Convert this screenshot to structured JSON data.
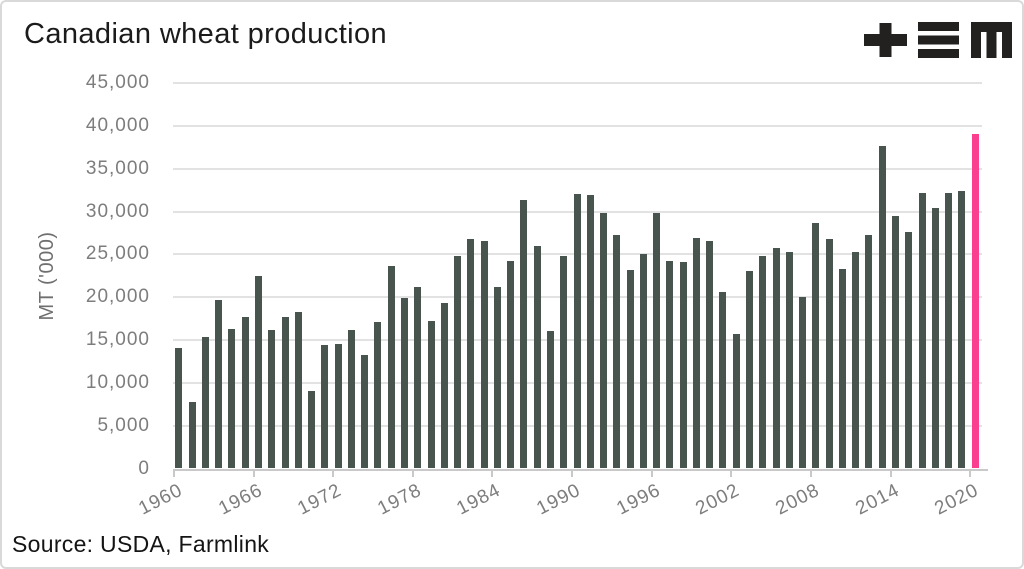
{
  "header": {
    "title": "Canadian wheat production",
    "logo_alt": "+≡M"
  },
  "source_line": "Source: USDA, Farmlink",
  "colors": {
    "bar": "#48554F",
    "highlight": "#FA3E90",
    "gridline": "#E2E2E2",
    "axis": "#C9C9C9",
    "tick_text": "#7D7D7D",
    "title_text": "#1B1B1B",
    "logo": "#232020",
    "frame_border": "#D9D9D9",
    "background": "#FFFFFF"
  },
  "chart_data": {
    "type": "bar",
    "title": "Canadian wheat production",
    "xlabel": "",
    "ylabel": "MT ('000)",
    "ylim": [
      0,
      45000
    ],
    "ytick_step": 5000,
    "ytick_labels": [
      "0",
      "5,000",
      "10,000",
      "15,000",
      "20,000",
      "25,000",
      "30,000",
      "35,000",
      "40,000",
      "45,000"
    ],
    "xtick_labels": [
      "1960",
      "1966",
      "1972",
      "1978",
      "1984",
      "1990",
      "1996",
      "2002",
      "2008",
      "2014",
      "2020"
    ],
    "xtick_interval": 6,
    "grid": true,
    "legend": false,
    "years": [
      1960,
      1961,
      1962,
      1963,
      1964,
      1965,
      1966,
      1967,
      1968,
      1969,
      1970,
      1971,
      1972,
      1973,
      1974,
      1975,
      1976,
      1977,
      1978,
      1979,
      1980,
      1981,
      1982,
      1983,
      1984,
      1985,
      1986,
      1987,
      1988,
      1989,
      1990,
      1991,
      1992,
      1993,
      1994,
      1995,
      1996,
      1997,
      1998,
      1999,
      2000,
      2001,
      2002,
      2003,
      2004,
      2005,
      2006,
      2007,
      2008,
      2009,
      2010,
      2011,
      2012,
      2013,
      2014,
      2015,
      2016,
      2017,
      2018,
      2019,
      2020
    ],
    "values": [
      14108,
      7713,
      15393,
      19691,
      16341,
      17674,
      22516,
      16137,
      17686,
      18269,
      9024,
      14412,
      14514,
      16159,
      13295,
      17078,
      23587,
      19862,
      21146,
      17196,
      19292,
      24802,
      26826,
      26505,
      21199,
      24252,
      31378,
      25992,
      15996,
      24796,
      32098,
      31946,
      29871,
      27232,
      23122,
      25037,
      29801,
      24280,
      24076,
      26900,
      26533,
      20568,
      15700,
      23054,
      24796,
      25748,
      25265,
      20054,
      28611,
      26848,
      23300,
      25288,
      27205,
      37589,
      29420,
      27594,
      32140,
      30377,
      32201,
      32348,
      39000
    ],
    "highlight_year": 2020
  }
}
